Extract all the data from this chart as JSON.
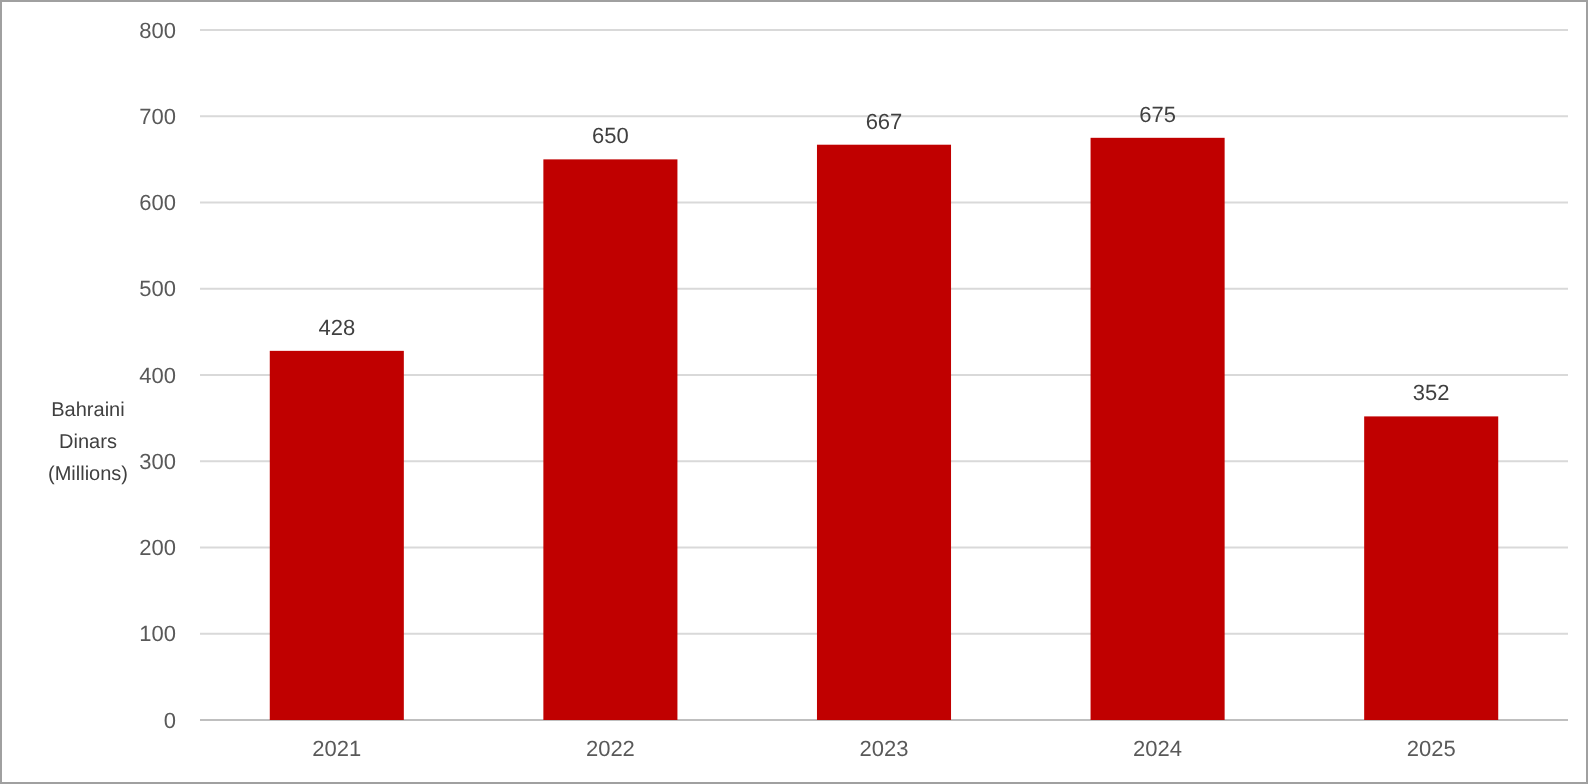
{
  "chart_data": {
    "type": "bar",
    "ylabel": "Bahraini Dinars (Millions)",
    "categories": [
      "2021",
      "2022",
      "2023",
      "2024",
      "2025"
    ],
    "values": [
      428,
      650,
      667,
      675,
      352
    ],
    "color": "#c00000",
    "ylim": [
      0,
      800
    ],
    "yticks": [
      0,
      100,
      200,
      300,
      400,
      500,
      600,
      700,
      800
    ],
    "grid": "y",
    "data_labels": true
  }
}
